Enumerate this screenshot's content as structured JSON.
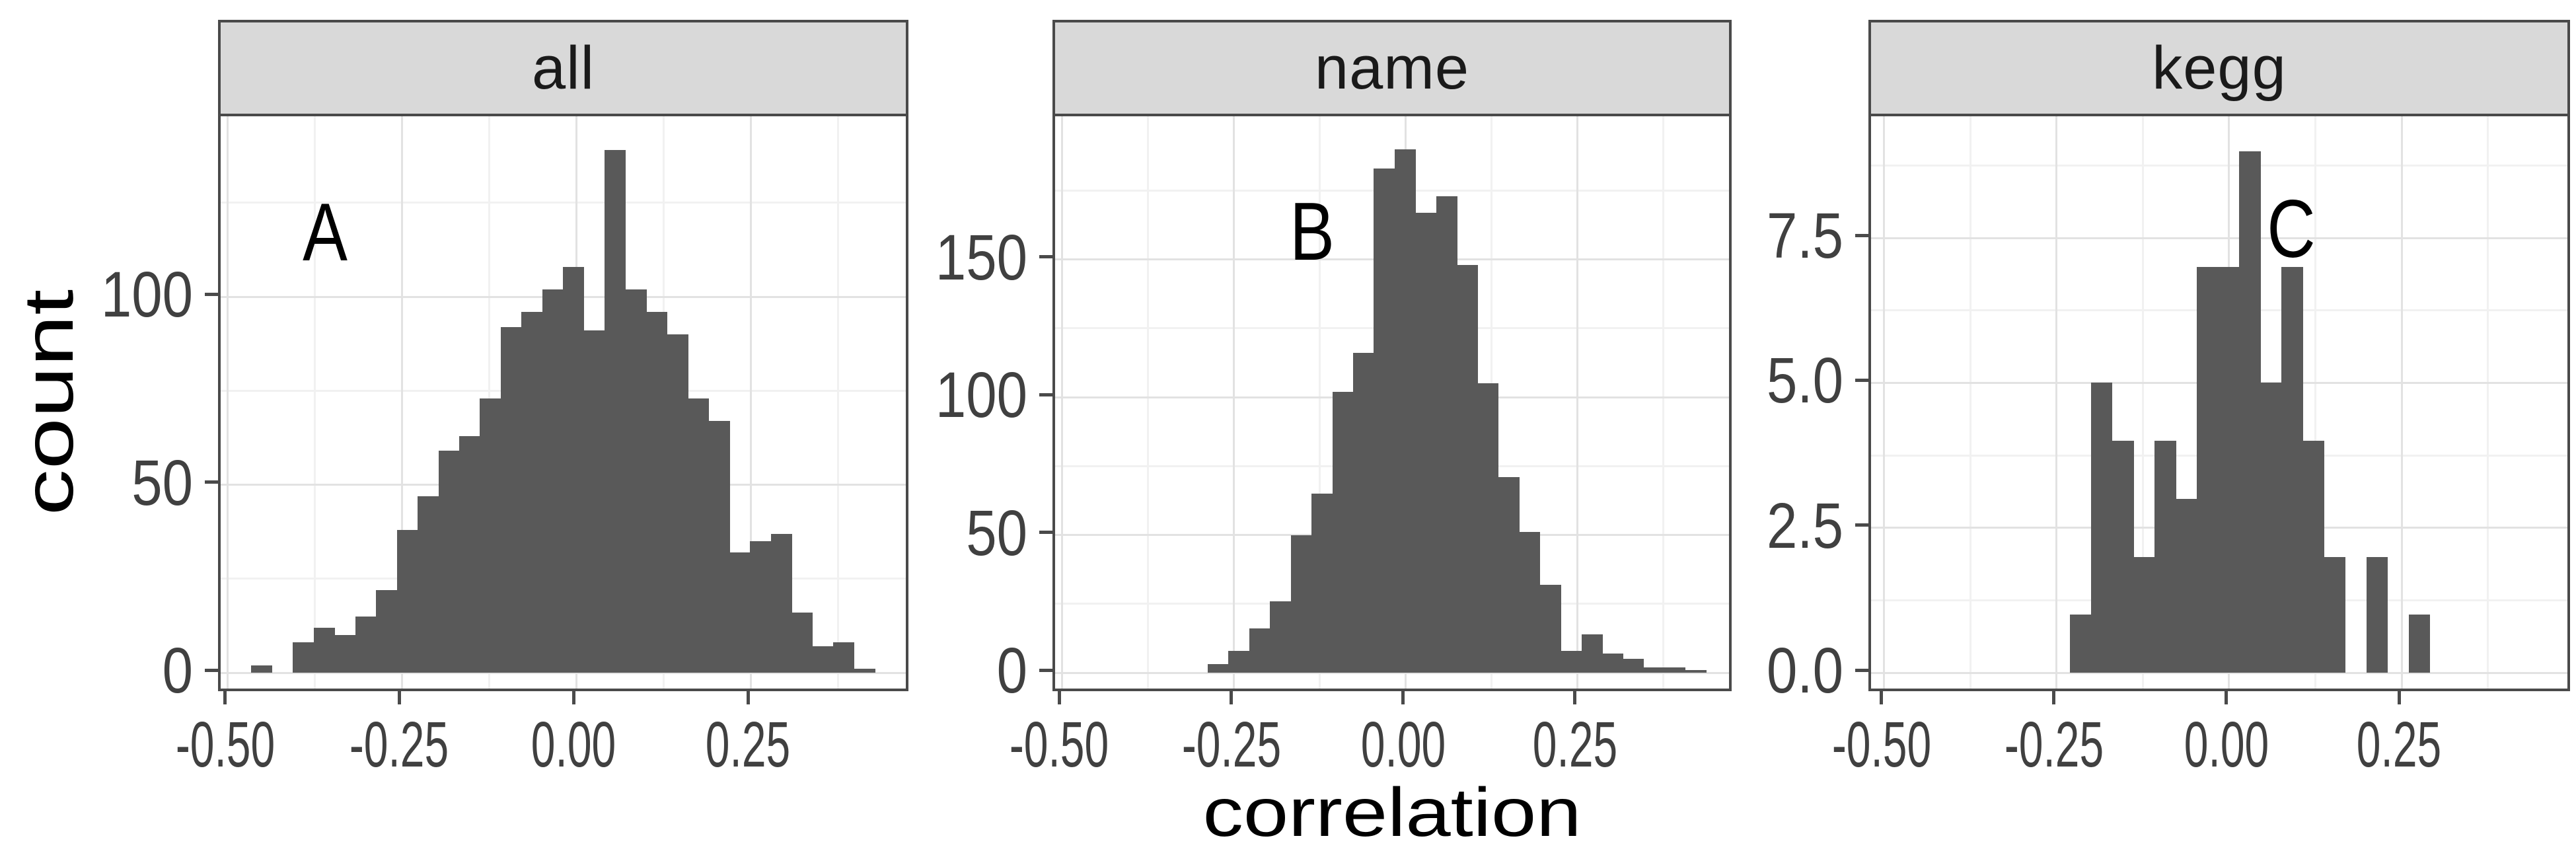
{
  "axes": {
    "y_title": "count",
    "x_title": "correlation"
  },
  "styles": {
    "bar_color": "#595959",
    "strip_background": "#D9D9D9",
    "panel_border": "#4A4A4A",
    "grid_major_color": "#E2E2E2",
    "grid_minor_color": "#F1F1F1",
    "tick_label_color": "#404040"
  },
  "chart_data": [
    {
      "type": "bar",
      "subtype": "histogram",
      "facet_label": "all",
      "panel_letter": "A",
      "xlabel": "correlation",
      "ylabel": "count",
      "bin_start": -0.466,
      "bin_width": 0.0298,
      "counts": [
        2,
        0,
        8,
        12,
        10,
        15,
        22,
        38,
        47,
        59,
        63,
        73,
        92,
        96,
        102,
        108,
        91,
        139,
        102,
        96,
        90,
        73,
        67,
        32,
        35,
        37,
        16,
        7,
        8,
        1
      ],
      "x_ticks": [
        -0.5,
        -0.25,
        0.0,
        0.25
      ],
      "x_tick_labels": [
        "-0.50",
        "-0.25",
        "0.00",
        "0.25"
      ],
      "y_ticks": [
        0,
        50,
        100
      ],
      "y_tick_labels": [
        "0",
        "50",
        "100"
      ],
      "xlim": [
        -0.51,
        0.48
      ],
      "ylim": [
        0,
        148
      ],
      "grid": "major+minor",
      "legend": "none",
      "letter_pos": {
        "x": -0.36,
        "y": 117
      }
    },
    {
      "type": "bar",
      "subtype": "histogram",
      "facet_label": "name",
      "panel_letter": "B",
      "xlabel": "correlation",
      "ylabel": "count",
      "bin_start": -0.288,
      "bin_width": 0.0302,
      "counts": [
        3,
        8,
        16,
        26,
        50,
        65,
        102,
        116,
        183,
        190,
        167,
        173,
        148,
        105,
        71,
        51,
        32,
        8,
        14,
        7,
        5,
        2,
        2,
        1
      ],
      "x_ticks": [
        -0.5,
        -0.25,
        0.0,
        0.25
      ],
      "x_tick_labels": [
        "-0.50",
        "-0.25",
        "0.00",
        "0.25"
      ],
      "y_ticks": [
        0,
        50,
        100,
        150
      ],
      "y_tick_labels": [
        "0",
        "50",
        "100",
        "150"
      ],
      "xlim": [
        -0.51,
        0.478
      ],
      "ylim": [
        0,
        202
      ],
      "grid": "major+minor",
      "legend": "none",
      "letter_pos": {
        "x": -0.136,
        "y": 160
      }
    },
    {
      "type": "bar",
      "subtype": "histogram",
      "facet_label": "kegg",
      "panel_letter": "C",
      "xlabel": "correlation",
      "ylabel": "count",
      "bin_start": -0.231,
      "bin_width": 0.0307,
      "counts": [
        1,
        5,
        4,
        2,
        4,
        3,
        7,
        7,
        9,
        5,
        7,
        4,
        2,
        0,
        2,
        0,
        1
      ],
      "x_ticks": [
        -0.5,
        -0.25,
        0.0,
        0.25
      ],
      "x_tick_labels": [
        "-0.50",
        "-0.25",
        "0.00",
        "0.25"
      ],
      "y_ticks": [
        0,
        2.5,
        5.0,
        7.5
      ],
      "y_tick_labels": [
        "0.0",
        "2.5",
        "5.0",
        "7.5"
      ],
      "xlim": [
        -0.519,
        0.498
      ],
      "ylim": [
        0,
        9.6
      ],
      "grid": "major+minor",
      "legend": "none",
      "letter_pos": {
        "x": 0.09,
        "y": 7.65
      }
    }
  ]
}
